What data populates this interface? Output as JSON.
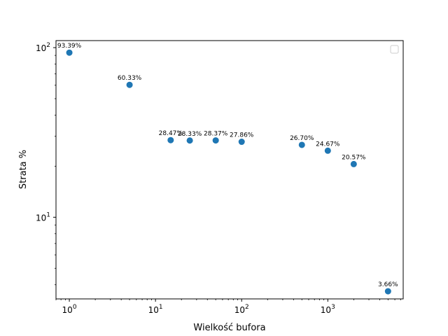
{
  "chart_data": {
    "type": "scatter",
    "xlabel": "Wielkość bufora",
    "ylabel": "Strata %",
    "xscale": "log",
    "yscale": "log",
    "xlim": [
      0.7,
      7500
    ],
    "ylim": [
      3.3,
      110
    ],
    "x_ticks": [
      {
        "value": 1,
        "base": "10",
        "exp": "0"
      },
      {
        "value": 10,
        "base": "10",
        "exp": "1"
      },
      {
        "value": 100,
        "base": "10",
        "exp": "2"
      },
      {
        "value": 1000,
        "base": "10",
        "exp": "3"
      }
    ],
    "y_ticks": [
      {
        "value": 10,
        "base": "10",
        "exp": "1"
      },
      {
        "value": 100,
        "base": "10",
        "exp": "2"
      }
    ],
    "grid": false,
    "legend": "top-right (empty)",
    "marker_color": "#1f77b4",
    "points": [
      {
        "x": 1,
        "y": 93.39,
        "label": "93.39%"
      },
      {
        "x": 5,
        "y": 60.33,
        "label": "60.33%"
      },
      {
        "x": 15,
        "y": 28.47,
        "label": "28.47%"
      },
      {
        "x": 25,
        "y": 28.33,
        "label": "28.33%"
      },
      {
        "x": 50,
        "y": 28.37,
        "label": "28.37%"
      },
      {
        "x": 100,
        "y": 27.86,
        "label": "27.86%"
      },
      {
        "x": 500,
        "y": 26.7,
        "label": "26.70%"
      },
      {
        "x": 1000,
        "y": 24.67,
        "label": "24.67%"
      },
      {
        "x": 2000,
        "y": 20.57,
        "label": "20.57%"
      },
      {
        "x": 5000,
        "y": 3.66,
        "label": "3.66%"
      }
    ]
  }
}
